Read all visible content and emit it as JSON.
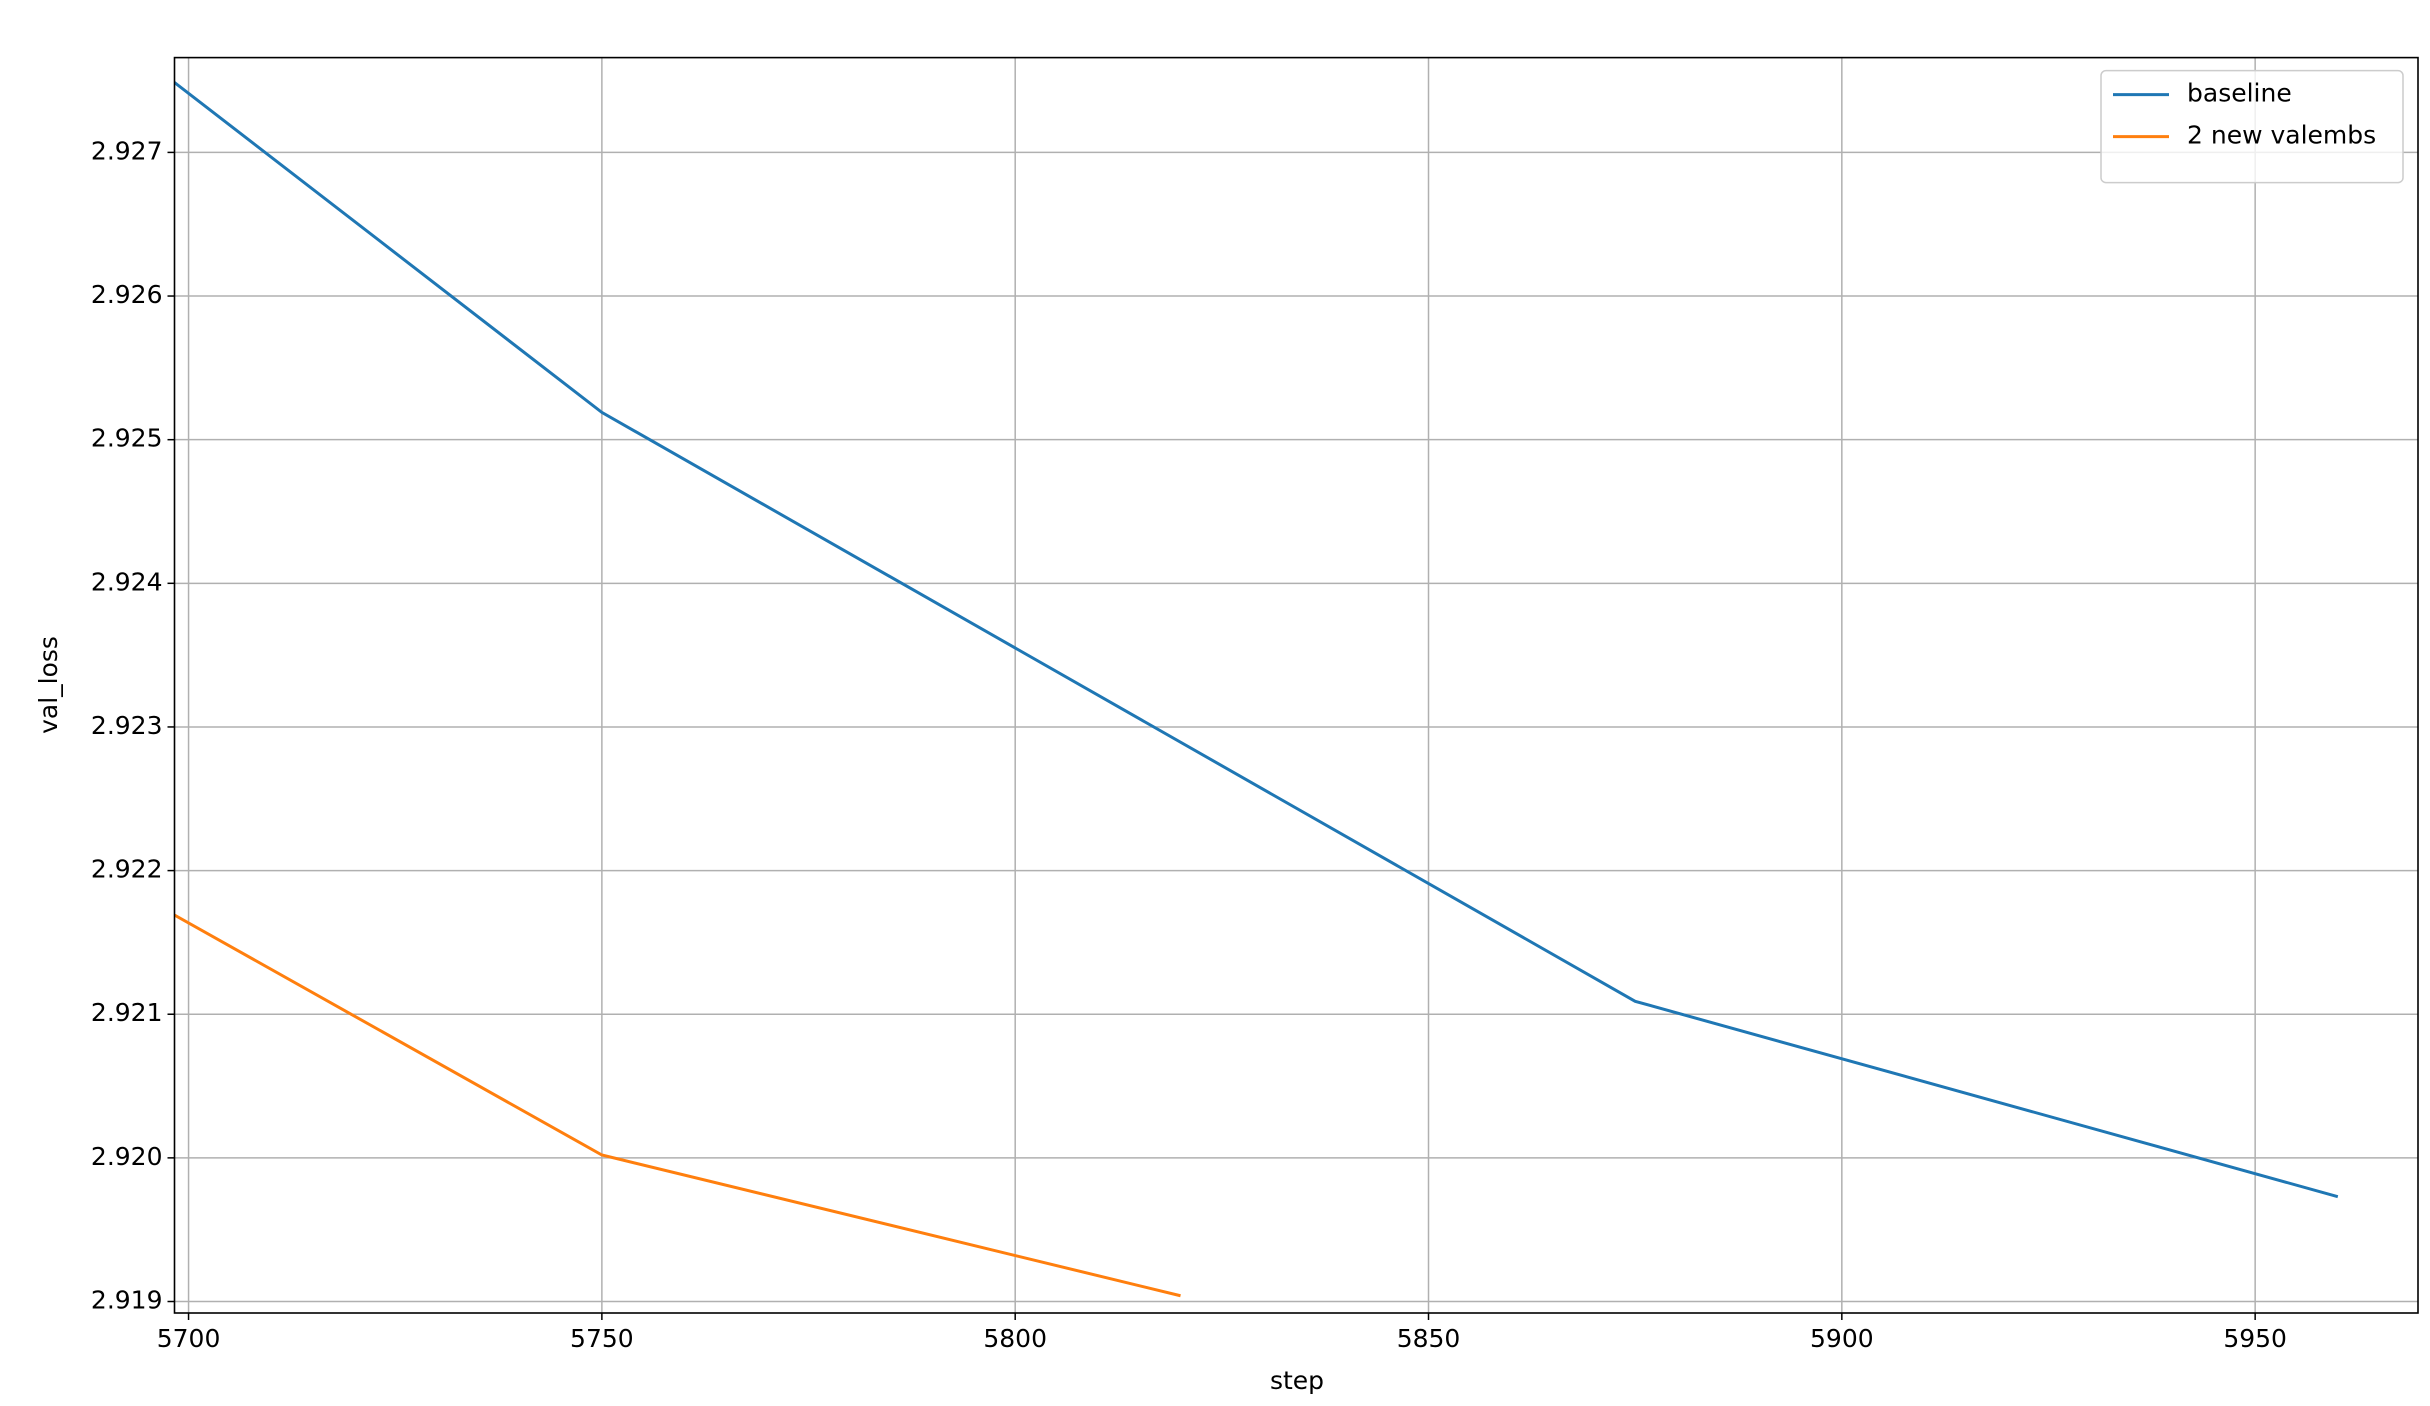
{
  "chart_data": {
    "type": "line",
    "x_label": "step",
    "y_label": "val_loss",
    "series": [
      {
        "name": "baseline",
        "color": "#1f77b4",
        "x": [
          5698,
          5750,
          5875,
          5960
        ],
        "values": [
          2.9275,
          2.92519,
          2.92109,
          2.91973
        ]
      },
      {
        "name": "2 new valembs",
        "color": "#ff7f0e",
        "x": [
          5698,
          5750,
          5820
        ],
        "values": [
          2.9217,
          2.92002,
          2.91904
        ]
      }
    ],
    "xlim": [
      5698.3,
      5969.7
    ],
    "ylim": [
      2.91892,
      2.92766
    ],
    "xticks": [
      5700,
      5750,
      5800,
      5850,
      5900,
      5950
    ],
    "yticks": [
      {
        "value": 2.919,
        "label": "2.919"
      },
      {
        "value": 2.92,
        "label": "2.920"
      },
      2.921,
      2.922,
      2.923,
      2.924,
      2.925,
      2.926,
      2.927
    ],
    "grid": true,
    "legend": "upper right"
  }
}
